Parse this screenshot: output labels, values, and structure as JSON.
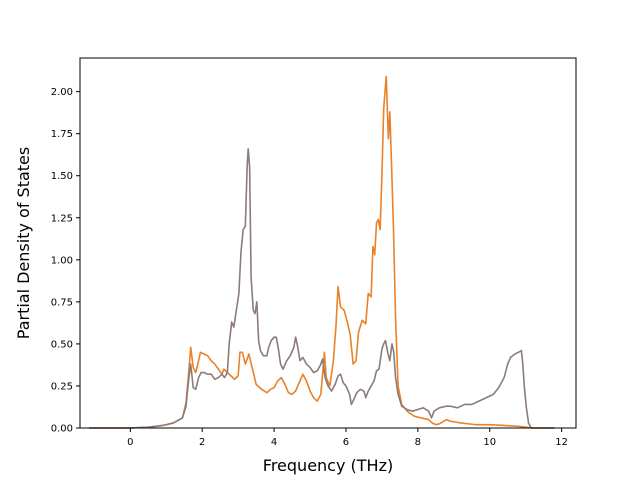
{
  "chart_data": {
    "type": "line",
    "title": "",
    "xlabel": "Frequency (THz)",
    "ylabel": "Partial Density of States",
    "xlim": [
      -1.4,
      12.4
    ],
    "ylim": [
      0,
      2.2
    ],
    "xticks": [
      0,
      2,
      4,
      6,
      8,
      10,
      12
    ],
    "xtick_labels": [
      "0",
      "2",
      "4",
      "6",
      "8",
      "10",
      "12"
    ],
    "yticks": [
      0,
      0.25,
      0.5,
      0.75,
      1.0,
      1.25,
      1.5,
      1.75,
      2.0
    ],
    "ytick_labels": [
      "0.00",
      "0.25",
      "0.50",
      "0.75",
      "1.00",
      "1.25",
      "1.50",
      "1.75",
      "2.00"
    ],
    "grid": false,
    "legend": false,
    "series": [
      {
        "color": "#e8822a",
        "points": [
          [
            -1.15,
            0.0
          ],
          [
            0.0,
            0.0
          ],
          [
            0.5,
            0.005
          ],
          [
            0.9,
            0.015
          ],
          [
            1.2,
            0.03
          ],
          [
            1.45,
            0.06
          ],
          [
            1.55,
            0.15
          ],
          [
            1.62,
            0.32
          ],
          [
            1.68,
            0.48
          ],
          [
            1.75,
            0.36
          ],
          [
            1.82,
            0.33
          ],
          [
            1.9,
            0.4
          ],
          [
            1.95,
            0.45
          ],
          [
            2.05,
            0.44
          ],
          [
            2.15,
            0.43
          ],
          [
            2.25,
            0.4
          ],
          [
            2.35,
            0.38
          ],
          [
            2.45,
            0.35
          ],
          [
            2.55,
            0.32
          ],
          [
            2.6,
            0.35
          ],
          [
            2.7,
            0.33
          ],
          [
            2.8,
            0.31
          ],
          [
            2.9,
            0.29
          ],
          [
            3.0,
            0.31
          ],
          [
            3.05,
            0.45
          ],
          [
            3.12,
            0.45
          ],
          [
            3.2,
            0.38
          ],
          [
            3.3,
            0.44
          ],
          [
            3.4,
            0.35
          ],
          [
            3.5,
            0.26
          ],
          [
            3.65,
            0.23
          ],
          [
            3.8,
            0.21
          ],
          [
            3.9,
            0.23
          ],
          [
            4.0,
            0.24
          ],
          [
            4.1,
            0.28
          ],
          [
            4.2,
            0.3
          ],
          [
            4.3,
            0.26
          ],
          [
            4.4,
            0.21
          ],
          [
            4.5,
            0.2
          ],
          [
            4.6,
            0.22
          ],
          [
            4.7,
            0.27
          ],
          [
            4.8,
            0.32
          ],
          [
            4.9,
            0.28
          ],
          [
            5.0,
            0.22
          ],
          [
            5.1,
            0.18
          ],
          [
            5.2,
            0.16
          ],
          [
            5.3,
            0.2
          ],
          [
            5.35,
            0.32
          ],
          [
            5.4,
            0.45
          ],
          [
            5.45,
            0.3
          ],
          [
            5.55,
            0.25
          ],
          [
            5.65,
            0.4
          ],
          [
            5.72,
            0.6
          ],
          [
            5.78,
            0.84
          ],
          [
            5.85,
            0.72
          ],
          [
            5.95,
            0.7
          ],
          [
            6.05,
            0.62
          ],
          [
            6.12,
            0.55
          ],
          [
            6.2,
            0.38
          ],
          [
            6.28,
            0.4
          ],
          [
            6.35,
            0.57
          ],
          [
            6.45,
            0.64
          ],
          [
            6.55,
            0.62
          ],
          [
            6.62,
            0.8
          ],
          [
            6.7,
            0.78
          ],
          [
            6.75,
            1.08
          ],
          [
            6.8,
            1.03
          ],
          [
            6.85,
            1.22
          ],
          [
            6.9,
            1.24
          ],
          [
            6.95,
            1.18
          ],
          [
            7.0,
            1.5
          ],
          [
            7.05,
            1.9
          ],
          [
            7.12,
            2.09
          ],
          [
            7.18,
            1.72
          ],
          [
            7.22,
            1.88
          ],
          [
            7.27,
            1.55
          ],
          [
            7.32,
            1.2
          ],
          [
            7.38,
            0.65
          ],
          [
            7.45,
            0.25
          ],
          [
            7.55,
            0.14
          ],
          [
            7.7,
            0.1
          ],
          [
            7.9,
            0.07
          ],
          [
            8.1,
            0.06
          ],
          [
            8.3,
            0.05
          ],
          [
            8.4,
            0.03
          ],
          [
            8.5,
            0.02
          ],
          [
            8.6,
            0.025
          ],
          [
            8.8,
            0.05
          ],
          [
            8.9,
            0.04
          ],
          [
            9.2,
            0.03
          ],
          [
            9.6,
            0.02
          ],
          [
            10.0,
            0.02
          ],
          [
            10.4,
            0.015
          ],
          [
            10.8,
            0.01
          ],
          [
            11.2,
            0.0
          ],
          [
            11.8,
            0.0
          ]
        ]
      },
      {
        "color": "#8c7b7b",
        "points": [
          [
            -1.15,
            0.0
          ],
          [
            0.0,
            0.0
          ],
          [
            0.5,
            0.005
          ],
          [
            0.9,
            0.015
          ],
          [
            1.2,
            0.03
          ],
          [
            1.45,
            0.06
          ],
          [
            1.55,
            0.13
          ],
          [
            1.62,
            0.28
          ],
          [
            1.68,
            0.38
          ],
          [
            1.75,
            0.24
          ],
          [
            1.82,
            0.23
          ],
          [
            1.9,
            0.3
          ],
          [
            1.97,
            0.33
          ],
          [
            2.05,
            0.33
          ],
          [
            2.15,
            0.32
          ],
          [
            2.25,
            0.32
          ],
          [
            2.35,
            0.29
          ],
          [
            2.45,
            0.3
          ],
          [
            2.55,
            0.32
          ],
          [
            2.62,
            0.3
          ],
          [
            2.7,
            0.33
          ],
          [
            2.75,
            0.5
          ],
          [
            2.82,
            0.63
          ],
          [
            2.88,
            0.6
          ],
          [
            2.95,
            0.7
          ],
          [
            3.02,
            0.8
          ],
          [
            3.08,
            1.05
          ],
          [
            3.14,
            1.18
          ],
          [
            3.2,
            1.2
          ],
          [
            3.25,
            1.55
          ],
          [
            3.28,
            1.66
          ],
          [
            3.32,
            1.55
          ],
          [
            3.36,
            0.9
          ],
          [
            3.42,
            0.7
          ],
          [
            3.47,
            0.68
          ],
          [
            3.52,
            0.75
          ],
          [
            3.57,
            0.52
          ],
          [
            3.62,
            0.46
          ],
          [
            3.7,
            0.43
          ],
          [
            3.8,
            0.43
          ],
          [
            3.85,
            0.48
          ],
          [
            3.92,
            0.52
          ],
          [
            4.0,
            0.54
          ],
          [
            4.06,
            0.54
          ],
          [
            4.12,
            0.47
          ],
          [
            4.18,
            0.38
          ],
          [
            4.25,
            0.35
          ],
          [
            4.35,
            0.4
          ],
          [
            4.45,
            0.43
          ],
          [
            4.55,
            0.48
          ],
          [
            4.6,
            0.54
          ],
          [
            4.66,
            0.48
          ],
          [
            4.72,
            0.4
          ],
          [
            4.8,
            0.42
          ],
          [
            4.9,
            0.38
          ],
          [
            5.0,
            0.36
          ],
          [
            5.1,
            0.33
          ],
          [
            5.2,
            0.34
          ],
          [
            5.28,
            0.37
          ],
          [
            5.35,
            0.41
          ],
          [
            5.42,
            0.3
          ],
          [
            5.5,
            0.25
          ],
          [
            5.6,
            0.22
          ],
          [
            5.7,
            0.26
          ],
          [
            5.78,
            0.31
          ],
          [
            5.85,
            0.32
          ],
          [
            5.92,
            0.27
          ],
          [
            6.0,
            0.25
          ],
          [
            6.1,
            0.2
          ],
          [
            6.15,
            0.14
          ],
          [
            6.22,
            0.17
          ],
          [
            6.3,
            0.21
          ],
          [
            6.4,
            0.23
          ],
          [
            6.5,
            0.22
          ],
          [
            6.55,
            0.18
          ],
          [
            6.62,
            0.22
          ],
          [
            6.7,
            0.25
          ],
          [
            6.78,
            0.28
          ],
          [
            6.85,
            0.34
          ],
          [
            6.92,
            0.35
          ],
          [
            7.0,
            0.47
          ],
          [
            7.05,
            0.5
          ],
          [
            7.1,
            0.52
          ],
          [
            7.16,
            0.45
          ],
          [
            7.22,
            0.4
          ],
          [
            7.28,
            0.5
          ],
          [
            7.33,
            0.45
          ],
          [
            7.38,
            0.3
          ],
          [
            7.45,
            0.2
          ],
          [
            7.55,
            0.13
          ],
          [
            7.7,
            0.11
          ],
          [
            7.85,
            0.1
          ],
          [
            8.0,
            0.11
          ],
          [
            8.15,
            0.12
          ],
          [
            8.3,
            0.1
          ],
          [
            8.38,
            0.06
          ],
          [
            8.45,
            0.1
          ],
          [
            8.6,
            0.12
          ],
          [
            8.8,
            0.13
          ],
          [
            8.9,
            0.13
          ],
          [
            9.1,
            0.12
          ],
          [
            9.3,
            0.14
          ],
          [
            9.5,
            0.14
          ],
          [
            9.7,
            0.16
          ],
          [
            9.9,
            0.18
          ],
          [
            10.1,
            0.2
          ],
          [
            10.25,
            0.24
          ],
          [
            10.4,
            0.3
          ],
          [
            10.5,
            0.38
          ],
          [
            10.58,
            0.42
          ],
          [
            10.7,
            0.44
          ],
          [
            10.8,
            0.45
          ],
          [
            10.88,
            0.46
          ],
          [
            10.92,
            0.38
          ],
          [
            10.96,
            0.25
          ],
          [
            11.02,
            0.12
          ],
          [
            11.08,
            0.03
          ],
          [
            11.15,
            0.0
          ],
          [
            11.8,
            0.0
          ]
        ]
      }
    ]
  }
}
